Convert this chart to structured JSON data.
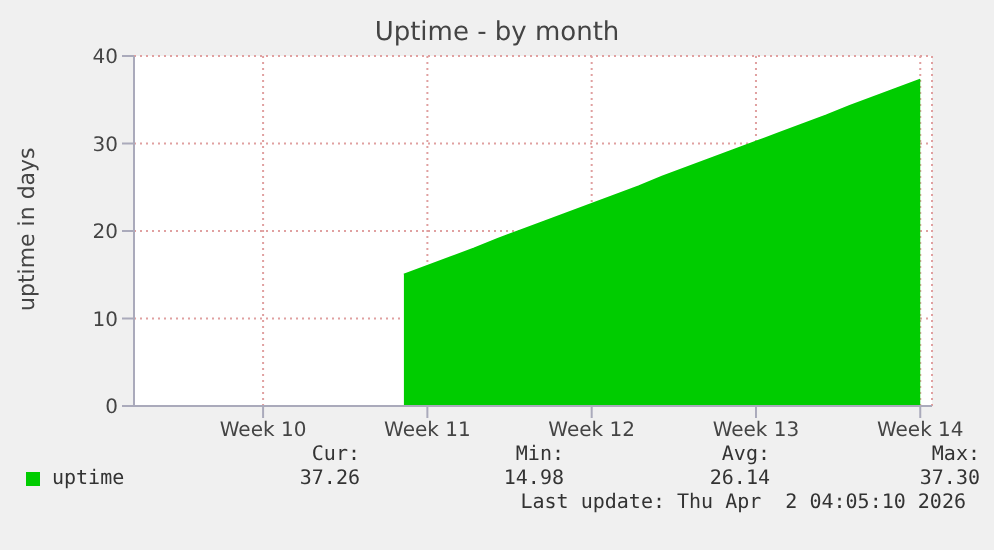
{
  "chart_data": {
    "type": "area",
    "title": "Uptime - by month",
    "ylabel": "uptime in days",
    "categories": [
      null,
      null,
      null,
      null,
      null,
      "Week 10",
      null,
      null,
      null,
      null,
      null,
      null,
      "Week 11",
      null,
      null,
      null,
      null,
      null,
      null,
      "Week 12",
      null,
      null,
      null,
      null,
      null,
      null,
      "Week 13",
      null,
      null,
      null,
      null,
      null,
      null,
      "Week 14"
    ],
    "ylim": [
      0,
      40
    ],
    "yticks": [
      0,
      10,
      20,
      30,
      40
    ],
    "grid": true,
    "legend": "bottom left",
    "series": [
      {
        "name": "uptime",
        "color": "#00cc00",
        "values": [
          null,
          null,
          null,
          null,
          null,
          null,
          null,
          null,
          null,
          null,
          null,
          15.0,
          16.0,
          17.0,
          18.0,
          19.1,
          20.1,
          21.1,
          22.1,
          23.1,
          24.1,
          25.1,
          26.2,
          27.2,
          28.2,
          29.2,
          30.2,
          31.2,
          32.2,
          33.2,
          34.3,
          35.3,
          36.3,
          37.3
        ]
      }
    ],
    "annotations": [
      "Cur:",
      "Min:",
      "Avg:",
      "Max:",
      "37.26",
      "14.98",
      "26.14",
      "37.30",
      "Last update: Thu Apr  2 04:05:10 2026"
    ]
  }
}
